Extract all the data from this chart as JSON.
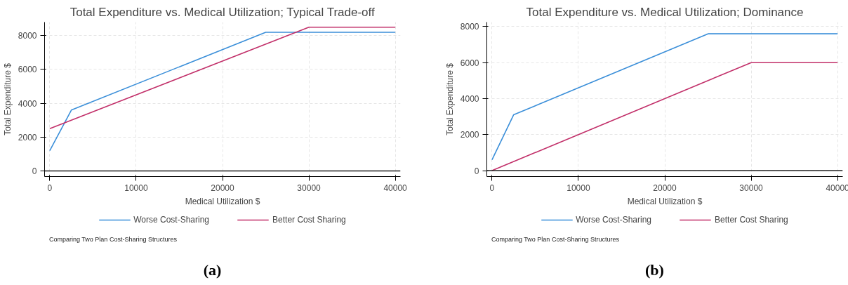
{
  "chart_data": [
    {
      "type": "line",
      "title": "Total Expenditure vs. Medical Utilization; Typical Trade-off",
      "xlabel": "Medical Utilization $",
      "ylabel": "Total Expenditure $",
      "series": [
        {
          "name": "Worse Cost-Sharing",
          "color": "#3b8fd9",
          "x": [
            0,
            2500,
            25000,
            40000
          ],
          "values": [
            1200,
            3600,
            8200,
            8200
          ]
        },
        {
          "name": "Better Cost Sharing",
          "color": "#c2306a",
          "x": [
            0,
            30000,
            40000
          ],
          "values": [
            2500,
            8500,
            8500
          ]
        }
      ],
      "xlim": [
        -600,
        40600
      ],
      "ylim": [
        -330,
        8800
      ],
      "xticks": [
        0,
        10000,
        20000,
        30000,
        40000
      ],
      "yticks": [
        0,
        2000,
        4000,
        6000,
        8000
      ],
      "ref_lines": [
        {
          "axis": "y",
          "value": 0,
          "color": "#222222"
        }
      ],
      "grid": true,
      "legend": "bottom",
      "line_style": "solid",
      "annotations": [
        "Comparing Two Plan Cost-Sharing Structures",
        "(a)"
      ]
    },
    {
      "type": "line",
      "title": "Total Expenditure vs. Medical Utilization; Dominance",
      "xlabel": "Medical Utilization $",
      "ylabel": "Total Expenditure $",
      "series": [
        {
          "name": "Worse Cost-Sharing",
          "color": "#3b8fd9",
          "x": [
            0,
            2500,
            25000,
            40000
          ],
          "values": [
            600,
            3100,
            7600,
            7600
          ]
        },
        {
          "name": "Better Cost Sharing",
          "color": "#c2306a",
          "x": [
            0,
            30000,
            40000
          ],
          "values": [
            0,
            6000,
            6000
          ]
        }
      ],
      "xlim": [
        -600,
        40600
      ],
      "ylim": [
        -330,
        8250
      ],
      "xticks": [
        0,
        10000,
        20000,
        30000,
        40000
      ],
      "yticks": [
        0,
        2000,
        4000,
        6000,
        8000
      ],
      "ref_lines": [
        {
          "axis": "y",
          "value": 0,
          "color": "#222222"
        }
      ],
      "grid": true,
      "legend": "bottom",
      "line_style": "solid",
      "annotations": [
        "Comparing Two Plan Cost-Sharing Structures",
        "(b)"
      ]
    }
  ]
}
